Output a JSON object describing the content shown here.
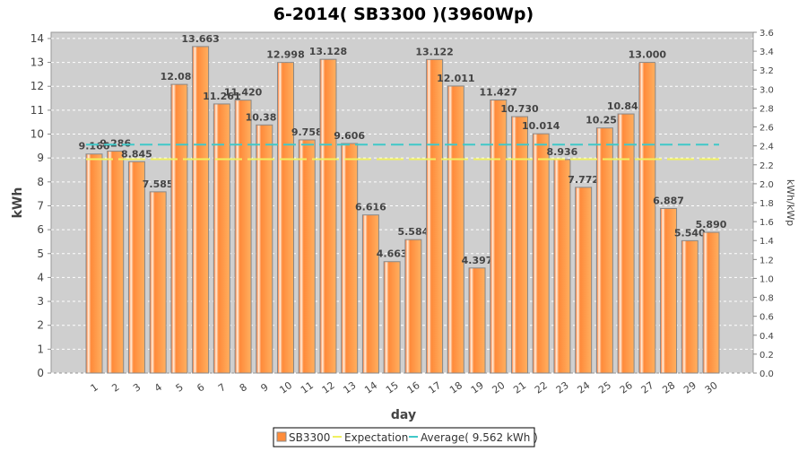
{
  "chart_data": {
    "type": "bar",
    "title": "6-2014( SB3300 )(3960Wp)",
    "xlabel": "day",
    "ylabel": "kWh",
    "y2label": "kWh/kWp",
    "ylim": [
      0,
      14.26
    ],
    "y2lim": [
      0,
      3.6
    ],
    "yticks": [
      0,
      1,
      2,
      3,
      4,
      5,
      6,
      7,
      8,
      9,
      10,
      11,
      12,
      13,
      14
    ],
    "y2ticks": [
      "0.0",
      "0.2",
      "0.4",
      "0.6",
      "0.8",
      "1.0",
      "1.2",
      "1.4",
      "1.6",
      "1.8",
      "2.0",
      "2.2",
      "2.4",
      "2.6",
      "2.8",
      "3.0",
      "3.2",
      "3.4",
      "3.6"
    ],
    "categories": [
      "1",
      "2",
      "3",
      "4",
      "5",
      "6",
      "7",
      "8",
      "9",
      "10",
      "11",
      "12",
      "13",
      "14",
      "15",
      "16",
      "17",
      "18",
      "19",
      "20",
      "21",
      "22",
      "23",
      "24",
      "25",
      "26",
      "27",
      "28",
      "29",
      "30"
    ],
    "series": [
      {
        "name": "SB3300",
        "color": "#ff8c3a",
        "values": [
          9.166,
          9.286,
          8.845,
          7.585,
          12.08,
          13.663,
          11.261,
          11.42,
          10.383,
          12.998,
          9.758,
          13.128,
          9.606,
          6.616,
          4.663,
          5.584,
          13.122,
          12.011,
          4.397,
          11.427,
          10.73,
          10.014,
          8.936,
          7.772,
          10.256,
          10.843,
          13.0,
          6.887,
          5.54,
          5.89
        ],
        "labels": [
          "9.166",
          "9.286",
          "8.845",
          "7.585",
          "12.080",
          "13.663",
          "11.261",
          "11.420",
          "10.383",
          "12.998",
          "9.758",
          "13.128",
          "9.606",
          "6.616",
          "4.663",
          "5.584",
          "13.122",
          "12.011",
          "4.397",
          "11.427",
          "10.730",
          "10.014",
          "8.936",
          "7.772",
          "10.256",
          "10.843",
          "13.000",
          "6.887",
          "5.540",
          "5.890"
        ]
      }
    ],
    "lines": [
      {
        "name": "Expectation",
        "value": 8.95,
        "color": "#f0f060"
      },
      {
        "name": "Average( 9.562 kWh )",
        "value": 9.562,
        "color": "#40c8c8"
      }
    ],
    "grid": true,
    "legend": "bottom"
  }
}
